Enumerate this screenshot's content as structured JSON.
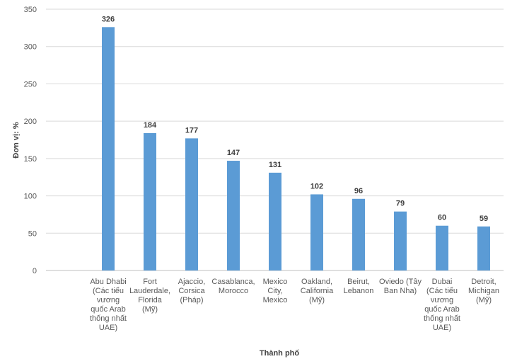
{
  "chart_data": {
    "type": "bar",
    "title": "",
    "xlabel": "Thành phố",
    "ylabel": "Đơn vị: %",
    "ylim": [
      0,
      350
    ],
    "yticks": [
      0,
      50,
      100,
      150,
      200,
      250,
      300,
      350
    ],
    "grid": true,
    "bar_color": "#5B9BD5",
    "categories": [
      "Abu Dhabi (Các tiểu vương quốc Arab thống nhất UAE)",
      "Fort Lauderdale, Florida (Mỹ)",
      "Ajaccio, Corsica (Pháp)",
      "Casablanca, Morocco",
      "Mexico City, Mexico",
      "Oakland, California (Mỹ)",
      "Beirut, Lebanon",
      "Oviedo (Tây Ban Nha)",
      "Dubai (Các tiểu vương quốc Arab thống nhất UAE)",
      "Detroit, Michigan (Mỹ)"
    ],
    "category_lines": [
      [
        "Abu Dhabi",
        "(Các tiểu",
        "vương",
        "quốc Arab",
        "thống nhất",
        "UAE)"
      ],
      [
        "Fort",
        "Lauderdale,",
        "Florida",
        "(Mỹ)"
      ],
      [
        "Ajaccio,",
        "Corsica",
        "(Pháp)"
      ],
      [
        "Casablanca,",
        "Morocco"
      ],
      [
        "Mexico",
        "City,",
        "Mexico"
      ],
      [
        "Oakland,",
        "California",
        "(Mỹ)"
      ],
      [
        "Beirut,",
        "Lebanon"
      ],
      [
        "Oviedo (Tây",
        "Ban Nha)"
      ],
      [
        "Dubai",
        "(Các tiểu",
        "vương",
        "quốc Arab",
        "thống nhất",
        "UAE)"
      ],
      [
        "Detroit,",
        "Michigan",
        "(Mỹ)"
      ]
    ],
    "values": [
      326,
      184,
      177,
      147,
      131,
      102,
      96,
      79,
      60,
      59
    ]
  }
}
